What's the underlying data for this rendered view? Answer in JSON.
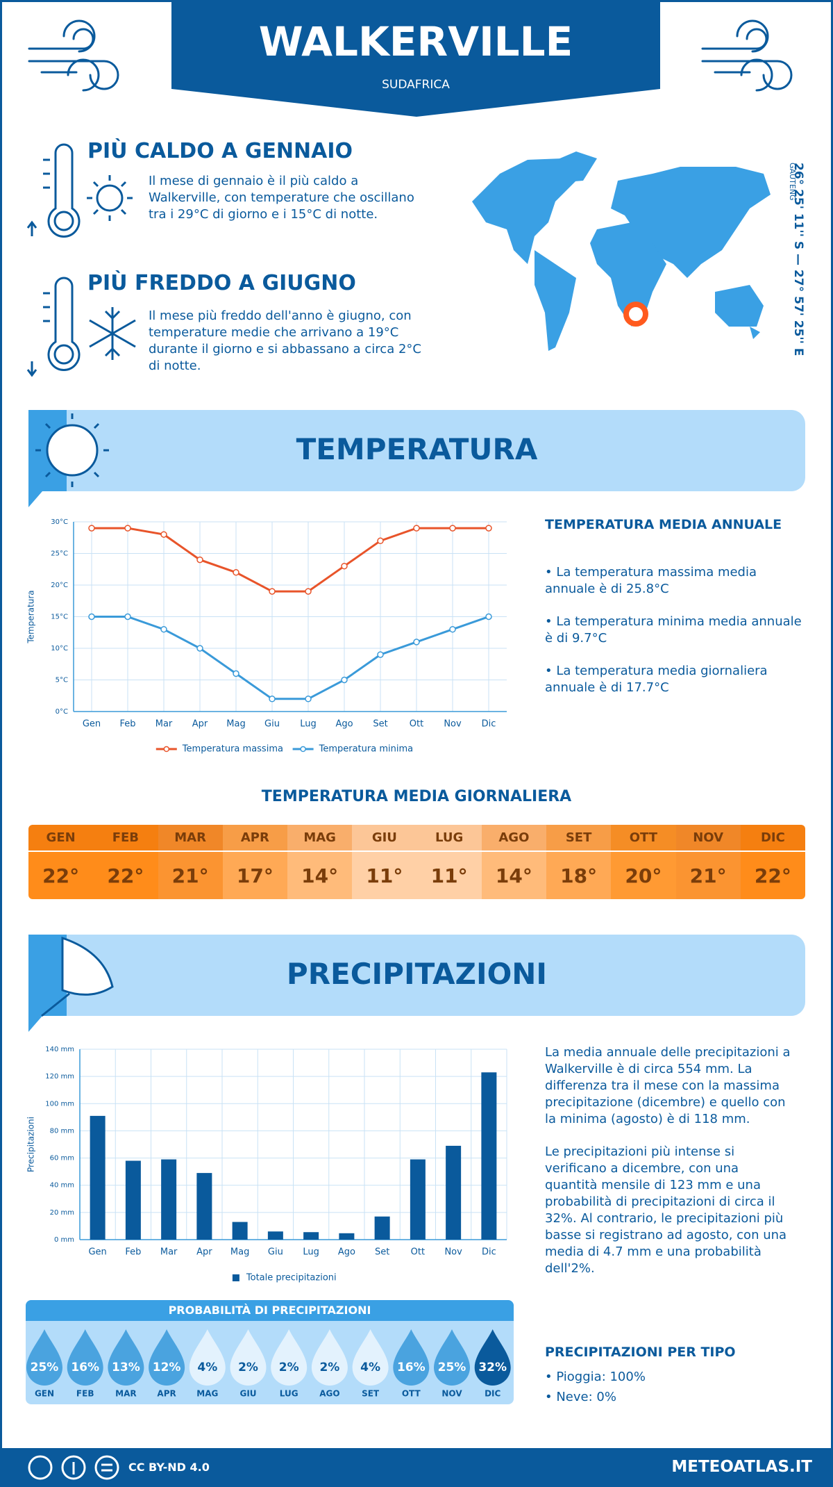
{
  "header": {
    "title": "WALKERVILLE",
    "subtitle": "SUDAFRICA"
  },
  "warmest": {
    "title": "PIÙ CALDO A GENNAIO",
    "text": "Il mese di gennaio è il più caldo a Walkerville, con temperature che oscillano tra i 29°C di giorno e i 15°C di notte."
  },
  "coldest": {
    "title": "PIÙ FREDDO A GIUGNO",
    "text": "Il mese più freddo dell'anno è giugno, con temperature medie che arrivano a 19°C durante il giorno e si abbassano a circa 2°C di notte."
  },
  "location": {
    "coordinates": "26° 25' 11'' S — 27° 57' 25'' E",
    "region": "GAUTENG"
  },
  "temperature_section": {
    "heading": "TEMPERATURA"
  },
  "annual_temperature": {
    "title": "TEMPERATURA MEDIA ANNUALE",
    "items": [
      "• La temperatura massima media annuale è di 25.8°C",
      "• La temperatura minima media annuale è di 9.7°C",
      "• La temperatura media giornaliera annuale è di 17.7°C"
    ]
  },
  "daily_temperature": {
    "title": "TEMPERATURA MEDIA GIORNALIERA",
    "months": [
      "GEN",
      "FEB",
      "MAR",
      "APR",
      "MAG",
      "GIU",
      "LUG",
      "AGO",
      "SET",
      "OTT",
      "NOV",
      "DIC"
    ],
    "values": [
      "22°",
      "22°",
      "21°",
      "17°",
      "14°",
      "11°",
      "11°",
      "14°",
      "18°",
      "20°",
      "21°",
      "22°"
    ]
  },
  "precipitation_section": {
    "heading": "PRECIPITAZIONI"
  },
  "precipitation_text": [
    "La media annuale delle precipitazioni a Walkerville è di circa 554 mm. La differenza tra il mese con la massima precipitazione (dicembre) e quello con la minima (agosto) è di 118 mm.",
    "Le precipitazioni più intense si verificano a dicembre, con una quantità mensile di 123 mm e una probabilità di precipitazioni di circa il 32%. Al contrario, le precipitazioni più basse si registrano ad agosto, con una media di 4.7 mm e una probabilità dell'2%."
  ],
  "probability": {
    "title": "PROBABILITÀ DI PRECIPITAZIONI",
    "months": [
      "GEN",
      "FEB",
      "MAR",
      "APR",
      "MAG",
      "GIU",
      "LUG",
      "AGO",
      "SET",
      "OTT",
      "NOV",
      "DIC"
    ],
    "values": [
      "25%",
      "16%",
      "13%",
      "12%",
      "4%",
      "2%",
      "2%",
      "2%",
      "4%",
      "16%",
      "25%",
      "32%"
    ]
  },
  "precipitation_type": {
    "title": "PRECIPITAZIONI PER TIPO",
    "items": [
      "• Pioggia: 100%",
      "• Neve: 0%"
    ]
  },
  "footer": {
    "license": "CC BY-ND 4.0",
    "site": "METEOATLAS.IT"
  },
  "chart_data": [
    {
      "type": "line",
      "ylabel": "Temperatura",
      "categories": [
        "Gen",
        "Feb",
        "Mar",
        "Apr",
        "Mag",
        "Giu",
        "Lug",
        "Ago",
        "Set",
        "Ott",
        "Nov",
        "Dic"
      ],
      "series": [
        {
          "name": "Temperatura massima",
          "color": "#e8542a",
          "values": [
            29,
            29,
            28,
            24,
            22,
            19,
            19,
            23,
            27,
            29,
            29,
            29
          ]
        },
        {
          "name": "Temperatura minima",
          "color": "#3a9ad9",
          "values": [
            15,
            15,
            13,
            10,
            6,
            2,
            2,
            5,
            9,
            11,
            13,
            15
          ]
        }
      ],
      "ylim": [
        0,
        30
      ],
      "yticks": [
        {
          "value": 0,
          "label": "0°C"
        },
        {
          "value": 5,
          "label": "5°C"
        },
        {
          "value": 10,
          "label": "10°C"
        },
        {
          "value": 15,
          "label": "15°C"
        },
        {
          "value": 20,
          "label": "20°C"
        },
        {
          "value": 25,
          "label": "25°C"
        },
        {
          "value": 30,
          "label": "30°C"
        }
      ],
      "grid": true
    },
    {
      "type": "bar",
      "ylabel": "Precipitazioni",
      "categories": [
        "Gen",
        "Feb",
        "Mar",
        "Apr",
        "Mag",
        "Giu",
        "Lug",
        "Ago",
        "Set",
        "Ott",
        "Nov",
        "Dic"
      ],
      "series": [
        {
          "name": "Totale precipitazioni",
          "color": "#0a5a9c",
          "values": [
            91,
            58,
            59,
            49,
            13,
            6,
            5.5,
            4.7,
            17,
            59,
            69,
            123
          ]
        }
      ],
      "ylim": [
        0,
        140
      ],
      "yticks": [
        {
          "value": 0,
          "label": "0 mm"
        },
        {
          "value": 20,
          "label": "20 mm"
        },
        {
          "value": 40,
          "label": "40 mm"
        },
        {
          "value": 60,
          "label": "60 mm"
        },
        {
          "value": 80,
          "label": "80 mm"
        },
        {
          "value": 100,
          "label": "100 mm"
        },
        {
          "value": 120,
          "label": "120 mm"
        },
        {
          "value": 140,
          "label": "140 mm"
        }
      ],
      "grid": true
    }
  ]
}
